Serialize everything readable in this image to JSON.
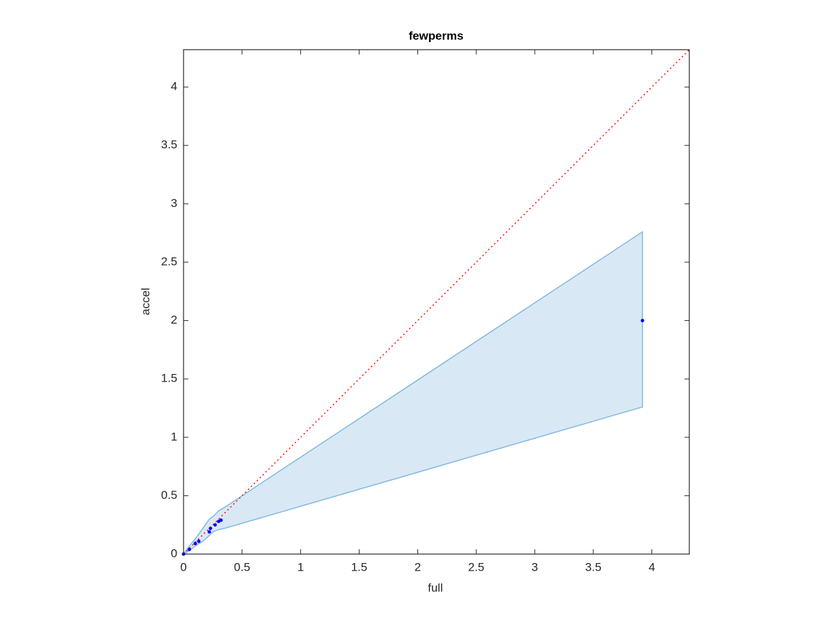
{
  "chart_data": {
    "type": "scatter",
    "title": "fewperms",
    "xlabel": "full",
    "ylabel": "accel",
    "xlim": [
      0,
      4.32
    ],
    "ylim": [
      0,
      4.32
    ],
    "xticks": [
      0,
      0.5,
      1,
      1.5,
      2,
      2.5,
      3,
      3.5,
      4
    ],
    "yticks": [
      0,
      0.5,
      1,
      1.5,
      2,
      2.5,
      3,
      3.5,
      4
    ],
    "band": {
      "stroke": "#80b8e0",
      "fill": "#d9e8f5",
      "x": [
        0,
        0.02,
        0.05,
        0.1,
        0.15,
        0.2,
        0.22,
        0.25,
        0.3,
        0.35,
        3.92
      ],
      "upper": [
        0,
        0.03,
        0.07,
        0.13,
        0.2,
        0.27,
        0.3,
        0.32,
        0.37,
        0.4,
        2.76
      ],
      "lower": [
        0,
        0.01,
        0.03,
        0.07,
        0.1,
        0.14,
        0.16,
        0.19,
        0.21,
        0.22,
        1.26
      ]
    },
    "points": {
      "color": "#0000ff",
      "x": [
        0,
        0.05,
        0.1,
        0.13,
        0.22,
        0.23,
        0.27,
        0.3,
        0.32,
        3.92
      ],
      "y": [
        0,
        0.04,
        0.09,
        0.11,
        0.19,
        0.22,
        0.25,
        0.28,
        0.29,
        2.0
      ]
    },
    "reference_line": {
      "color": "#ff0000",
      "x": [
        0,
        4.32
      ],
      "y": [
        0,
        4.32
      ]
    }
  }
}
